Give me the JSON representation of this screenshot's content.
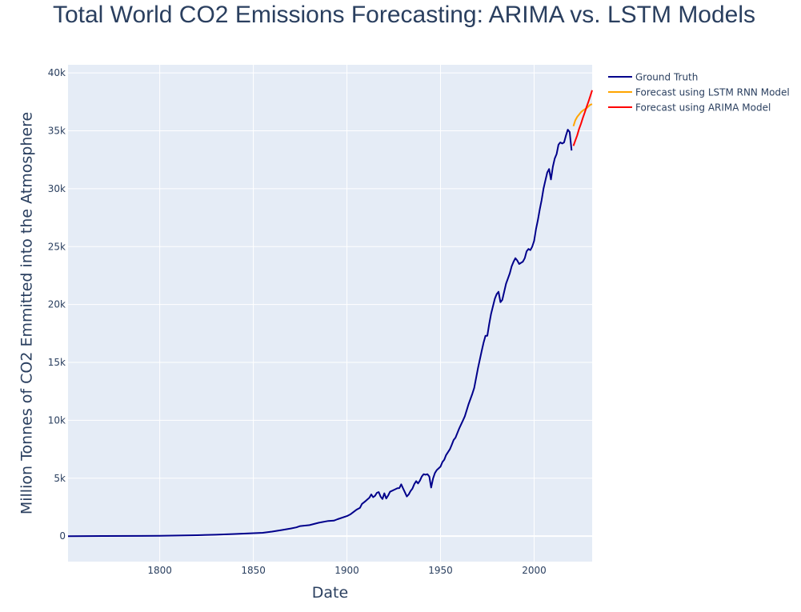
{
  "chart_data": {
    "type": "line",
    "title": "Total World CO2 Emissions Forecasting: ARIMA vs. LSTM Models",
    "xlabel": "Date",
    "ylabel": "Million Tonnes of CO2 Emmitted into the Atmosphere",
    "xlim": [
      1751,
      2031
    ],
    "ylim": [
      -2200,
      40700
    ],
    "x_ticks": [
      1800,
      1850,
      1900,
      1950,
      2000
    ],
    "y_ticks": [
      {
        "value": 0,
        "label": "0"
      },
      {
        "value": 5000,
        "label": "5k"
      },
      {
        "value": 10000,
        "label": "10k"
      },
      {
        "value": 15000,
        "label": "15k"
      },
      {
        "value": 20000,
        "label": "20k"
      },
      {
        "value": 25000,
        "label": "25k"
      },
      {
        "value": 30000,
        "label": "30k"
      },
      {
        "value": 35000,
        "label": "35k"
      },
      {
        "value": 40000,
        "label": "40k"
      }
    ],
    "grid": true,
    "legend_position": "top-right outside",
    "background": "#e5ecf6",
    "series": [
      {
        "name": "Ground Truth",
        "color": "#00008b",
        "x": [
          1751,
          1770,
          1790,
          1800,
          1810,
          1820,
          1830,
          1840,
          1850,
          1855,
          1860,
          1865,
          1870,
          1873,
          1875,
          1880,
          1885,
          1890,
          1893,
          1895,
          1900,
          1902,
          1905,
          1907,
          1908,
          1910,
          1912,
          1913,
          1914,
          1915,
          1916,
          1917,
          1918,
          1919,
          1920,
          1921,
          1922,
          1923,
          1925,
          1926,
          1927,
          1928,
          1929,
          1930,
          1931,
          1932,
          1933,
          1934,
          1935,
          1936,
          1937,
          1938,
          1939,
          1940,
          1941,
          1942,
          1943,
          1944,
          1945,
          1946,
          1947,
          1948,
          1950,
          1951,
          1952,
          1953,
          1955,
          1956,
          1957,
          1958,
          1960,
          1962,
          1963,
          1965,
          1967,
          1968,
          1970,
          1972,
          1973,
          1974,
          1975,
          1976,
          1977,
          1979,
          1980,
          1981,
          1982,
          1983,
          1985,
          1987,
          1988,
          1989,
          1990,
          1991,
          1992,
          1993,
          1994,
          1995,
          1996,
          1997,
          1998,
          1999,
          2000,
          2001,
          2002,
          2003,
          2004,
          2005,
          2006,
          2007,
          2008,
          2009,
          2010,
          2011,
          2012,
          2013,
          2014,
          2015,
          2016,
          2017,
          2018,
          2019,
          2020
        ],
        "y": [
          0,
          10,
          20,
          30,
          50,
          80,
          120,
          180,
          250,
          290,
          390,
          520,
          660,
          760,
          870,
          950,
          1160,
          1310,
          1340,
          1460,
          1730,
          1900,
          2270,
          2450,
          2780,
          3030,
          3320,
          3600,
          3360,
          3480,
          3740,
          3800,
          3400,
          3210,
          3700,
          3250,
          3500,
          3830,
          3980,
          4060,
          4140,
          4150,
          4470,
          4120,
          3770,
          3420,
          3600,
          3900,
          4100,
          4500,
          4750,
          4550,
          4800,
          5150,
          5350,
          5300,
          5350,
          5150,
          4200,
          4980,
          5450,
          5700,
          6000,
          6400,
          6600,
          7000,
          7500,
          7890,
          8300,
          8500,
          9300,
          10000,
          10350,
          11400,
          12300,
          12800,
          14500,
          16000,
          16700,
          17300,
          17300,
          18300,
          19200,
          20500,
          20900,
          21100,
          20200,
          20400,
          21800,
          22700,
          23300,
          23700,
          24000,
          23800,
          23500,
          23600,
          23700,
          24000,
          24600,
          24800,
          24700,
          25000,
          25500,
          26500,
          27300,
          28200,
          29000,
          30000,
          30700,
          31400,
          31700,
          30800,
          31900,
          32600,
          33000,
          33800,
          34000,
          33900,
          34000,
          34600,
          35100,
          34900,
          33300
        ]
      },
      {
        "name": "Forecast using LSTM RNN Model",
        "color": "#ffa500",
        "x": [
          2021,
          2022,
          2023,
          2024,
          2025,
          2026,
          2027,
          2028,
          2029,
          2030,
          2031
        ],
        "y": [
          35400,
          35900,
          36200,
          36400,
          36600,
          36750,
          36850,
          36950,
          37100,
          37250,
          37300
        ]
      },
      {
        "name": "Forecast using ARIMA Model",
        "color": "#ff0000",
        "x": [
          2021,
          2022,
          2023,
          2024,
          2025,
          2026,
          2027,
          2028,
          2029,
          2030,
          2031
        ],
        "y": [
          33700,
          34150,
          34600,
          35150,
          35600,
          36100,
          36550,
          37050,
          37500,
          38000,
          38500
        ]
      }
    ]
  }
}
